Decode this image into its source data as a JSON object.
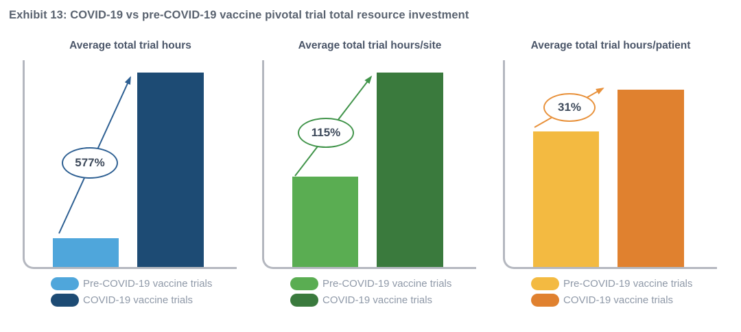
{
  "page": {
    "exhibit_title": "Exhibit 13: COVID-19 vs pre-COVID-19 vaccine pivotal trial total resource investment"
  },
  "chart_data": [
    {
      "type": "bar",
      "title": "Average total trial hours",
      "categories": [
        "Pre-COVID-19 vaccine trials",
        "COVID-19 vaccine trials"
      ],
      "values": [
        100,
        677
      ],
      "values_note": "indexed, pre-COVID-19 trials = 100; y-axis unlabeled",
      "annotation": "577%",
      "annotation_meaning": "percent increase from pre-COVID-19 to COVID-19 vaccine trials",
      "colors": [
        "#4FA6DB",
        "#1D4B74"
      ],
      "accent": "#2D5F92",
      "legend_position": "bottom",
      "grid": false
    },
    {
      "type": "bar",
      "title": "Average total trial hours/site",
      "categories": [
        "Pre-COVID-19 vaccine trials",
        "COVID-19 vaccine trials"
      ],
      "values": [
        100,
        215
      ],
      "values_note": "indexed, pre-COVID-19 trials = 100; y-axis unlabeled",
      "annotation": "115%",
      "annotation_meaning": "percent increase from pre-COVID-19 to COVID-19 vaccine trials",
      "colors": [
        "#5AAD52",
        "#3A7A3D"
      ],
      "accent": "#41944A",
      "legend_position": "bottom",
      "grid": false
    },
    {
      "type": "bar",
      "title": "Average total trial hours/patient",
      "categories": [
        "Pre-COVID-19 vaccine trials",
        "COVID-19 vaccine trials"
      ],
      "values": [
        100,
        131
      ],
      "values_note": "indexed, pre-COVID-19 trials = 100; y-axis unlabeled",
      "annotation": "31%",
      "annotation_meaning": "percent increase from pre-COVID-19 to COVID-19 vaccine trials",
      "colors": [
        "#F3BA41",
        "#E0812F"
      ],
      "accent": "#E8913B",
      "legend_position": "bottom",
      "grid": false
    }
  ]
}
